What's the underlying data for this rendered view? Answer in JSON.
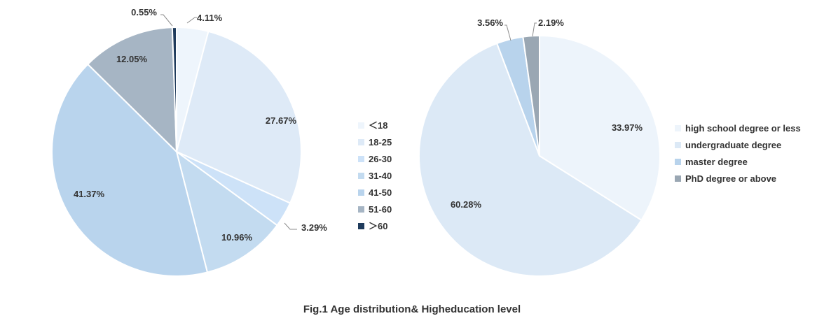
{
  "caption": "Fig.1 Age distribution& Higheducation level",
  "chart_data": [
    {
      "type": "pie",
      "title": "Age distribution",
      "start_angle_deg": 0,
      "direction": "clockwise",
      "slices": [
        {
          "label": "<18",
          "legend": "＜18",
          "value": 4.11,
          "value_label": "4.11%",
          "color": "#eef5fc"
        },
        {
          "label": "18-25",
          "legend": "18-25",
          "value": 27.67,
          "value_label": "27.67%",
          "color": "#deeaf7"
        },
        {
          "label": "26-30",
          "legend": "26-30",
          "value": 3.29,
          "value_label": "3.29%",
          "color": "#cde2f8"
        },
        {
          "label": "31-40",
          "legend": "31-40",
          "value": 10.96,
          "value_label": "10.96%",
          "color": "#c3dbf0"
        },
        {
          "label": "41-50",
          "legend": "41-50",
          "value": 41.37,
          "value_label": "41.37%",
          "color": "#b9d4ed"
        },
        {
          "label": "51-60",
          "legend": "51-60",
          "value": 12.05,
          "value_label": "12.05%",
          "color": "#a6b5c4"
        },
        {
          "label": ">60",
          "legend": "＞60",
          "value": 0.55,
          "value_label": "0.55%",
          "color": "#1f3b5c"
        }
      ]
    },
    {
      "type": "pie",
      "title": "Highest education level",
      "start_angle_deg": 0,
      "direction": "clockwise",
      "slices": [
        {
          "label": "high school degree or less",
          "legend": "high school degree or less",
          "value": 33.97,
          "value_label": "33.97%",
          "color": "#edf4fb"
        },
        {
          "label": "undergraduate degree",
          "legend": "undergraduate degree",
          "value": 60.28,
          "value_label": "60.28%",
          "color": "#dce9f6"
        },
        {
          "label": "master degree",
          "legend": "master degree",
          "value": 3.56,
          "value_label": "3.56%",
          "color": "#b8d3ec"
        },
        {
          "label": "PhD degree or above",
          "legend": "PhD degree or above",
          "value": 2.19,
          "value_label": "2.19%",
          "color": "#9aa7b3"
        }
      ]
    }
  ]
}
